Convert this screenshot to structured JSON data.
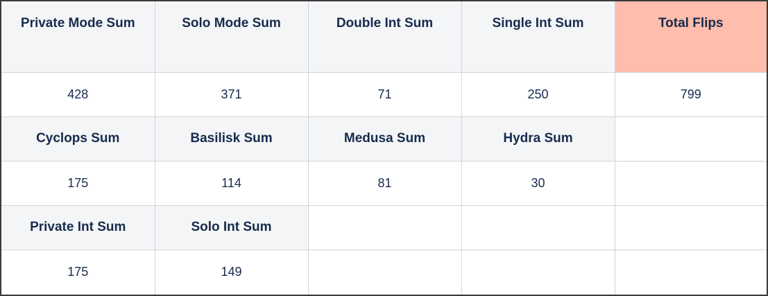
{
  "colors": {
    "header_background": "#f4f5f7",
    "highlight_header_background": "#ffbdad",
    "cell_background": "#ffffff",
    "text_color": "#172b4d",
    "grid_line_color": "#cfd4da"
  },
  "table": {
    "sections": [
      {
        "headers": [
          "Private Mode Sum",
          "Solo Mode Sum",
          "Double Int Sum",
          "Single Int Sum",
          "Total Flips"
        ],
        "highlighted_header": "Total Flips",
        "values": [
          "428",
          "371",
          "71",
          "250",
          "799"
        ]
      },
      {
        "headers": [
          "Cyclops Sum",
          "Basilisk Sum",
          "Medusa Sum",
          "Hydra Sum",
          ""
        ],
        "values": [
          "175",
          "114",
          "81",
          "30",
          ""
        ]
      },
      {
        "headers": [
          "Private Int Sum",
          "Solo Int Sum",
          "",
          "",
          ""
        ],
        "values": [
          "175",
          "149",
          "",
          "",
          ""
        ]
      }
    ]
  }
}
